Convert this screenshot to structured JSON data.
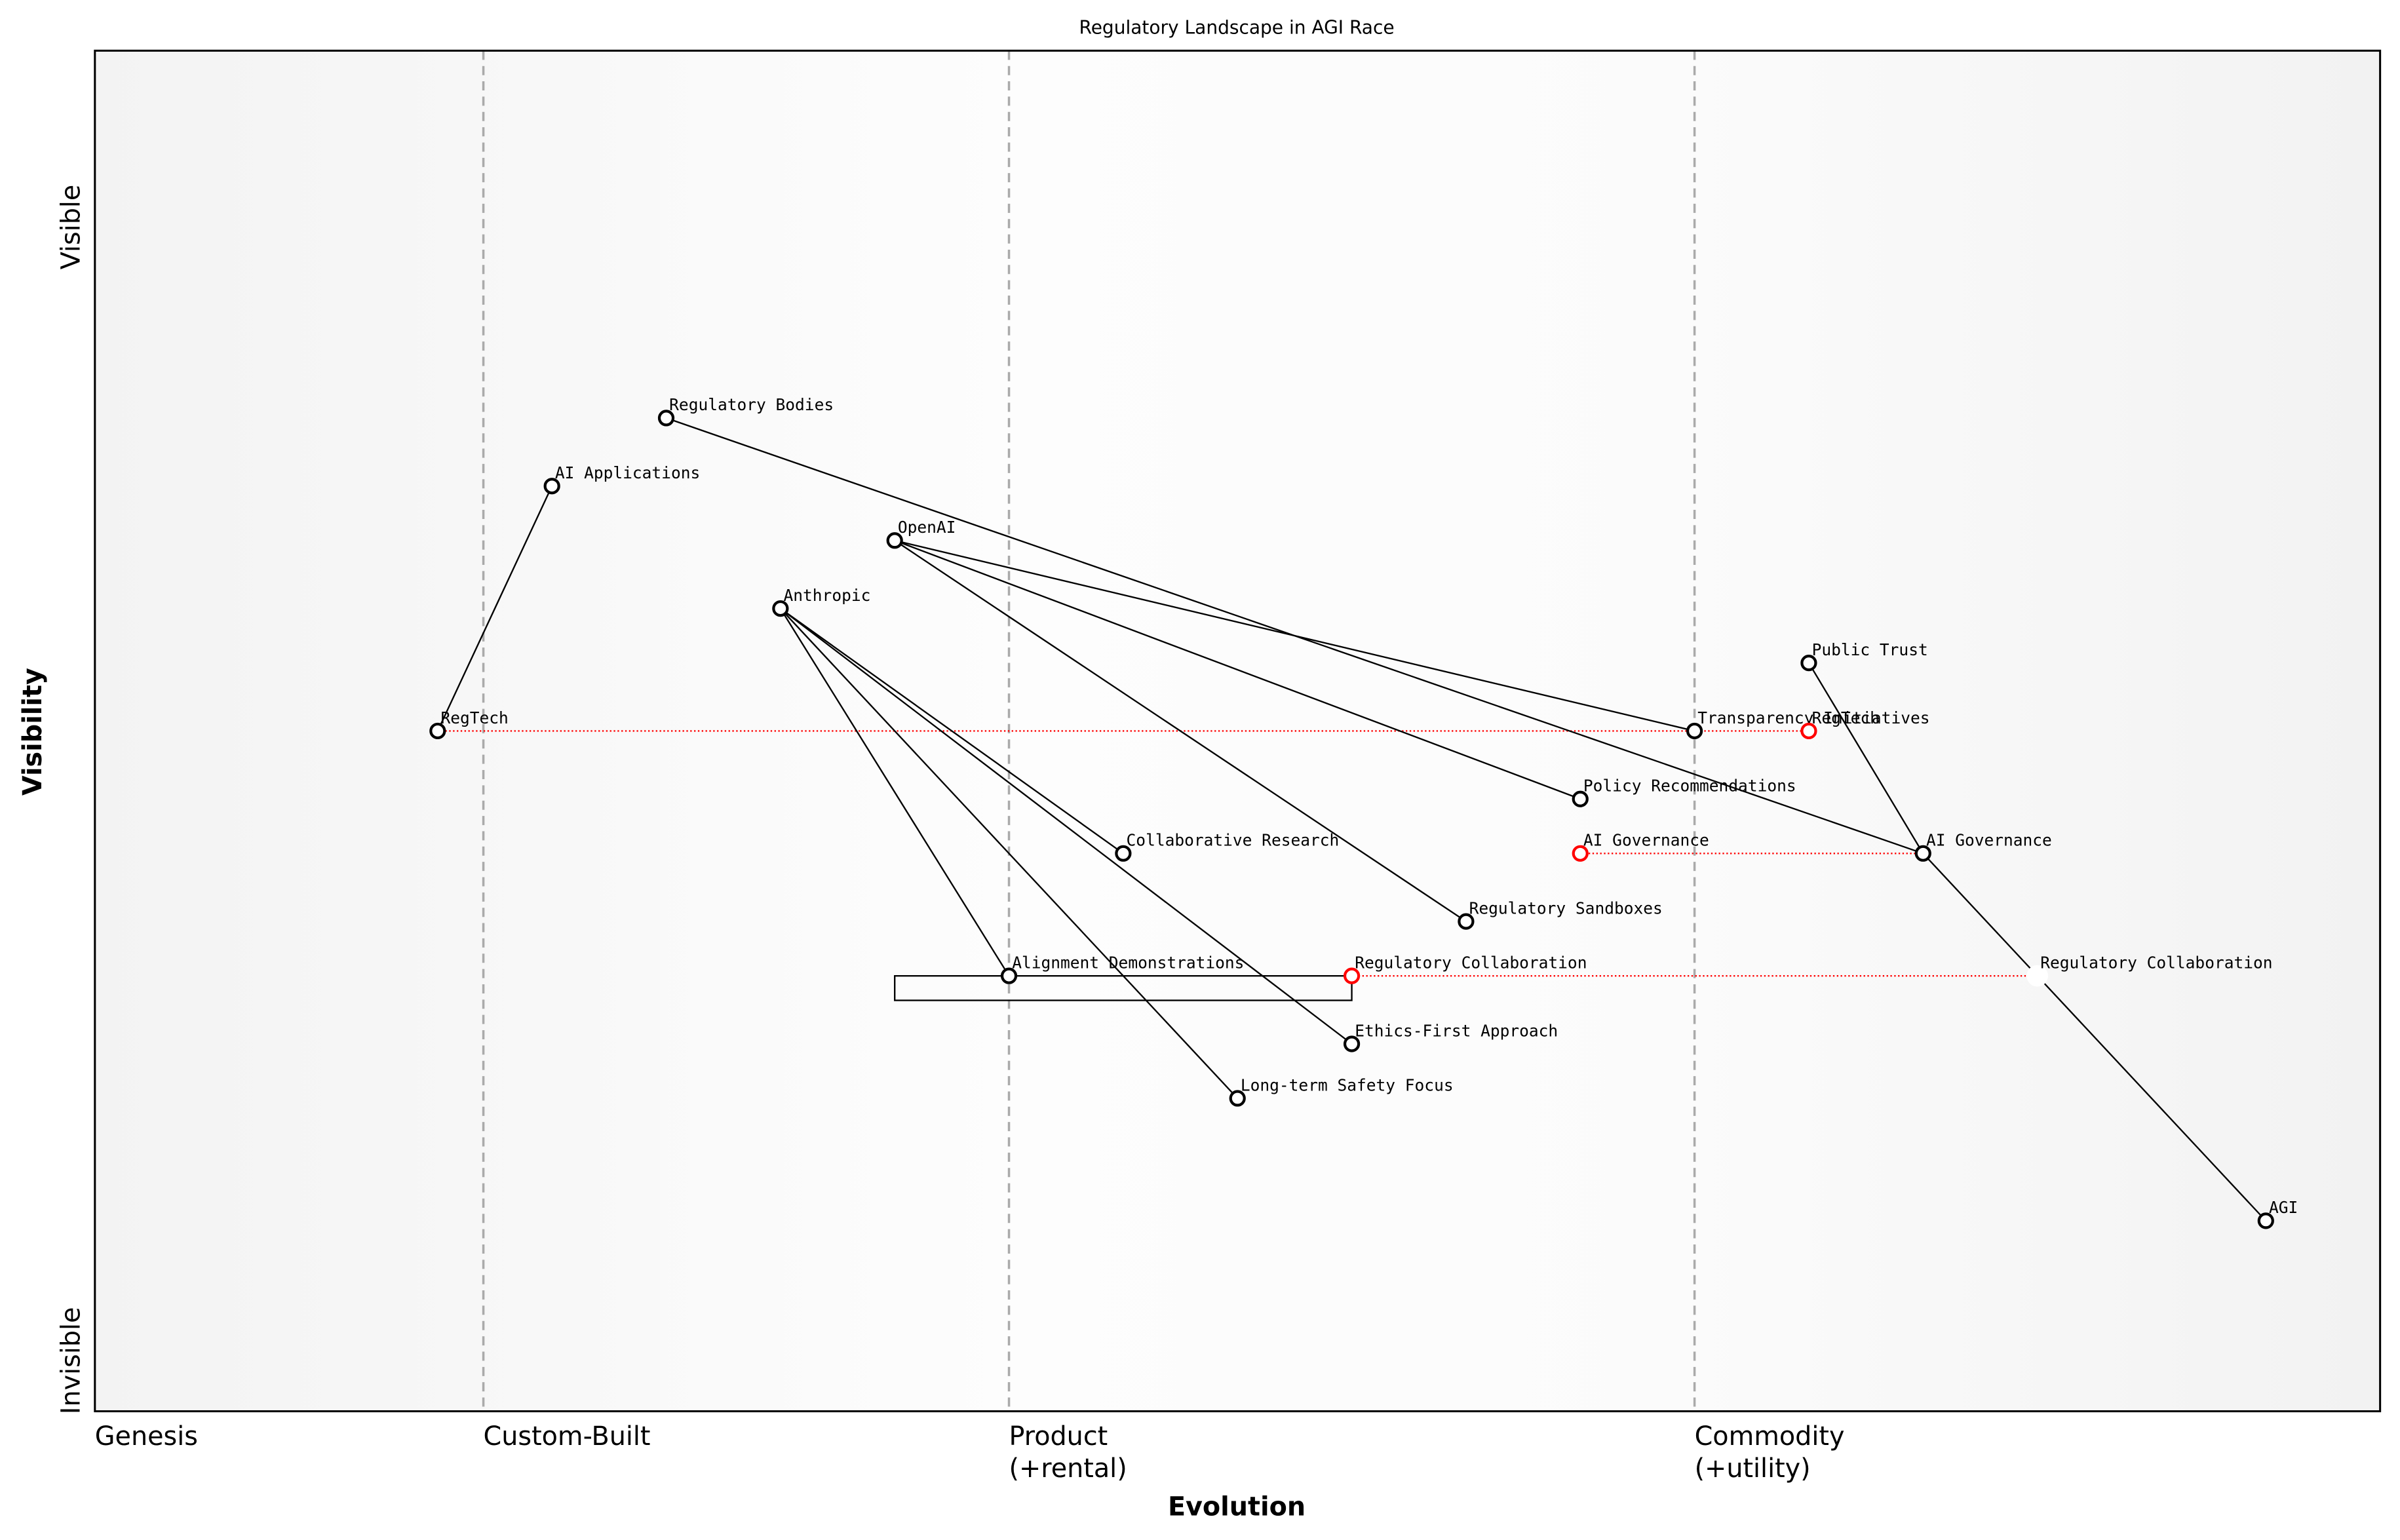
{
  "chart_data": {
    "type": "wardley",
    "title": "Regulatory Landscape in AGI Race",
    "x_label": "Evolution",
    "y_label": "Visibility",
    "y_end_labels": {
      "low": "Invisible",
      "high": "Visible"
    },
    "xlim": [
      0,
      1
    ],
    "ylim": [
      0,
      1
    ],
    "xticks": [
      {
        "value": 0,
        "label": "Genesis"
      },
      {
        "value": 0.17,
        "label": "Custom-Built"
      },
      {
        "value": 0.4,
        "label": "Product\n(+rental)"
      },
      {
        "value": 0.7,
        "label": "Commodity\n(+utility)"
      }
    ],
    "components": [
      {
        "name": "Regulatory Bodies",
        "evolution": 0.25,
        "visibility": 0.73,
        "color": "#000000"
      },
      {
        "name": "AI Applications",
        "evolution": 0.2,
        "visibility": 0.68,
        "color": "#000000"
      },
      {
        "name": "OpenAI",
        "evolution": 0.35,
        "visibility": 0.64,
        "color": "#000000"
      },
      {
        "name": "Anthropic",
        "evolution": 0.3,
        "visibility": 0.59,
        "color": "#000000"
      },
      {
        "name": "Public Trust",
        "evolution": 0.75,
        "visibility": 0.55,
        "color": "#000000"
      },
      {
        "name": "RegTech",
        "evolution": 0.15,
        "visibility": 0.5,
        "color": "#000000"
      },
      {
        "name": "Transparency Initiatives",
        "evolution": 0.7,
        "visibility": 0.5,
        "color": "#000000"
      },
      {
        "name": "Policy Recommendations",
        "evolution": 0.65,
        "visibility": 0.45,
        "color": "#000000"
      },
      {
        "name": "AI Governance",
        "evolution": 0.8,
        "visibility": 0.41,
        "color": "#000000"
      },
      {
        "name": "Collaborative Research",
        "evolution": 0.45,
        "visibility": 0.41,
        "color": "#000000"
      },
      {
        "name": "Regulatory Sandboxes",
        "evolution": 0.6,
        "visibility": 0.36,
        "color": "#000000"
      },
      {
        "name": "Alignment Demonstrations",
        "evolution": 0.4,
        "visibility": 0.32,
        "color": "#000000"
      },
      {
        "name": "Regulatory Collaboration",
        "evolution": 0.85,
        "visibility": 0.32,
        "color": "#ffffff"
      },
      {
        "name": "Ethics-First Approach",
        "evolution": 0.55,
        "visibility": 0.27,
        "color": "#000000"
      },
      {
        "name": "Long-term Safety Focus",
        "evolution": 0.5,
        "visibility": 0.23,
        "color": "#000000"
      },
      {
        "name": "AGI",
        "evolution": 0.95,
        "visibility": 0.14,
        "color": "#000000"
      },
      {
        "name": "RegTech",
        "evolution": 0.75,
        "visibility": 0.5,
        "color": "#ff0000"
      },
      {
        "name": "AI Governance",
        "evolution": 0.65,
        "visibility": 0.41,
        "color": "#ff0000"
      },
      {
        "name": "Regulatory Collaboration",
        "evolution": 0.55,
        "visibility": 0.32,
        "color": "#ff0000"
      }
    ],
    "links": [
      {
        "from": "AI Applications",
        "to": "RegTech"
      },
      {
        "from": "Regulatory Bodies",
        "to": "AI Governance"
      },
      {
        "from": "OpenAI",
        "to": "Transparency Initiatives"
      },
      {
        "from": "OpenAI",
        "to": "Policy Recommendations"
      },
      {
        "from": "OpenAI",
        "to": "Regulatory Sandboxes"
      },
      {
        "from": "Anthropic",
        "to": "Collaborative Research"
      },
      {
        "from": "Anthropic",
        "to": "Alignment Demonstrations"
      },
      {
        "from": "Anthropic",
        "to": "Ethics-First Approach"
      },
      {
        "from": "Anthropic",
        "to": "Long-term Safety Focus"
      },
      {
        "from": "Public Trust",
        "to": "AI Governance"
      },
      {
        "from": "AI Governance",
        "to": "AGI"
      }
    ],
    "pipelines": [
      {
        "component": "Regulatory Collaboration",
        "evolution": [
          0.35,
          0.55
        ]
      }
    ]
  }
}
